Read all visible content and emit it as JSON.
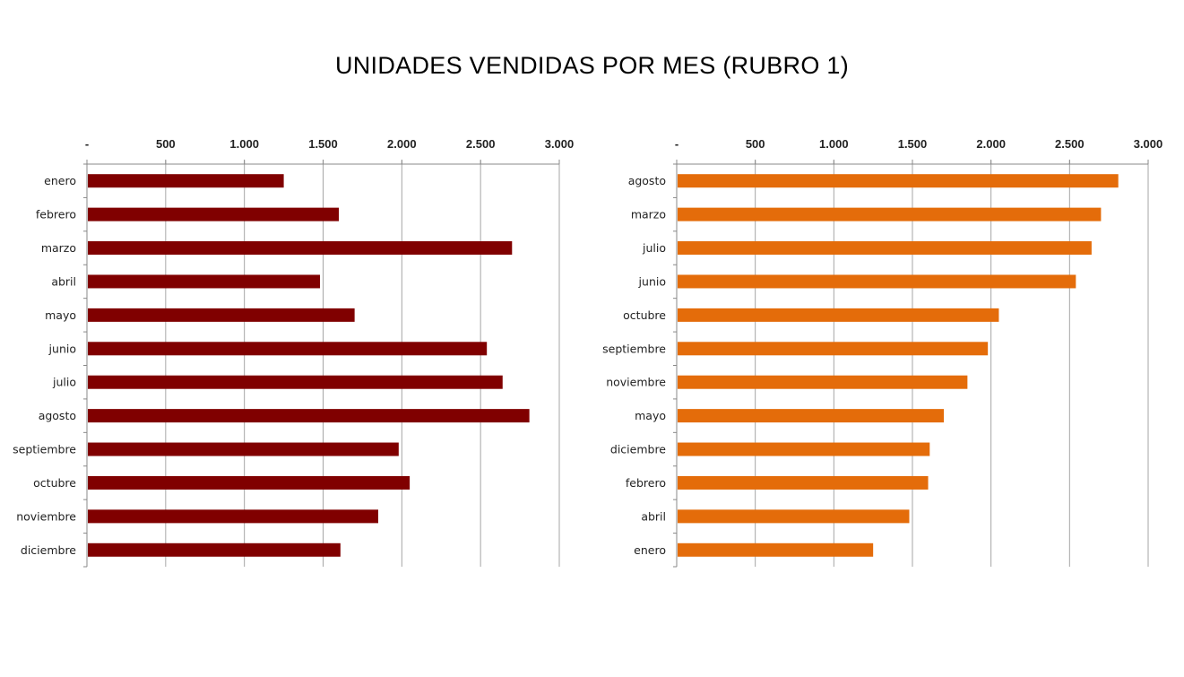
{
  "title": "UNIDADES VENDIDAS POR MES (RUBRO 1)",
  "chart_data": [
    {
      "type": "bar",
      "orientation": "horizontal",
      "color": "#800000",
      "xlim": [
        0,
        3000
      ],
      "ticks": [
        0,
        500,
        1000,
        1500,
        2000,
        2500,
        3000
      ],
      "tick_labels": [
        "-",
        "500",
        "1.000",
        "1.500",
        "2.000",
        "2.500",
        "3.000"
      ],
      "axis_position": "top",
      "grid": true,
      "categories": [
        "enero",
        "febrero",
        "marzo",
        "abril",
        "mayo",
        "junio",
        "julio",
        "agosto",
        "septiembre",
        "octubre",
        "noviembre",
        "diciembre"
      ],
      "values": [
        1250,
        1600,
        2700,
        1480,
        1700,
        2540,
        2640,
        2810,
        1980,
        2050,
        1850,
        1610
      ]
    },
    {
      "type": "bar",
      "orientation": "horizontal",
      "color": "#E46C0A",
      "xlim": [
        0,
        3000
      ],
      "ticks": [
        0,
        500,
        1000,
        1500,
        2000,
        2500,
        3000
      ],
      "tick_labels": [
        "-",
        "500",
        "1.000",
        "1.500",
        "2.000",
        "2.500",
        "3.000"
      ],
      "axis_position": "top",
      "grid": true,
      "categories": [
        "agosto",
        "marzo",
        "julio",
        "junio",
        "octubre",
        "septiembre",
        "noviembre",
        "mayo",
        "diciembre",
        "febrero",
        "abril",
        "enero"
      ],
      "values": [
        2810,
        2700,
        2640,
        2540,
        2050,
        1980,
        1850,
        1700,
        1610,
        1600,
        1480,
        1250
      ]
    }
  ]
}
